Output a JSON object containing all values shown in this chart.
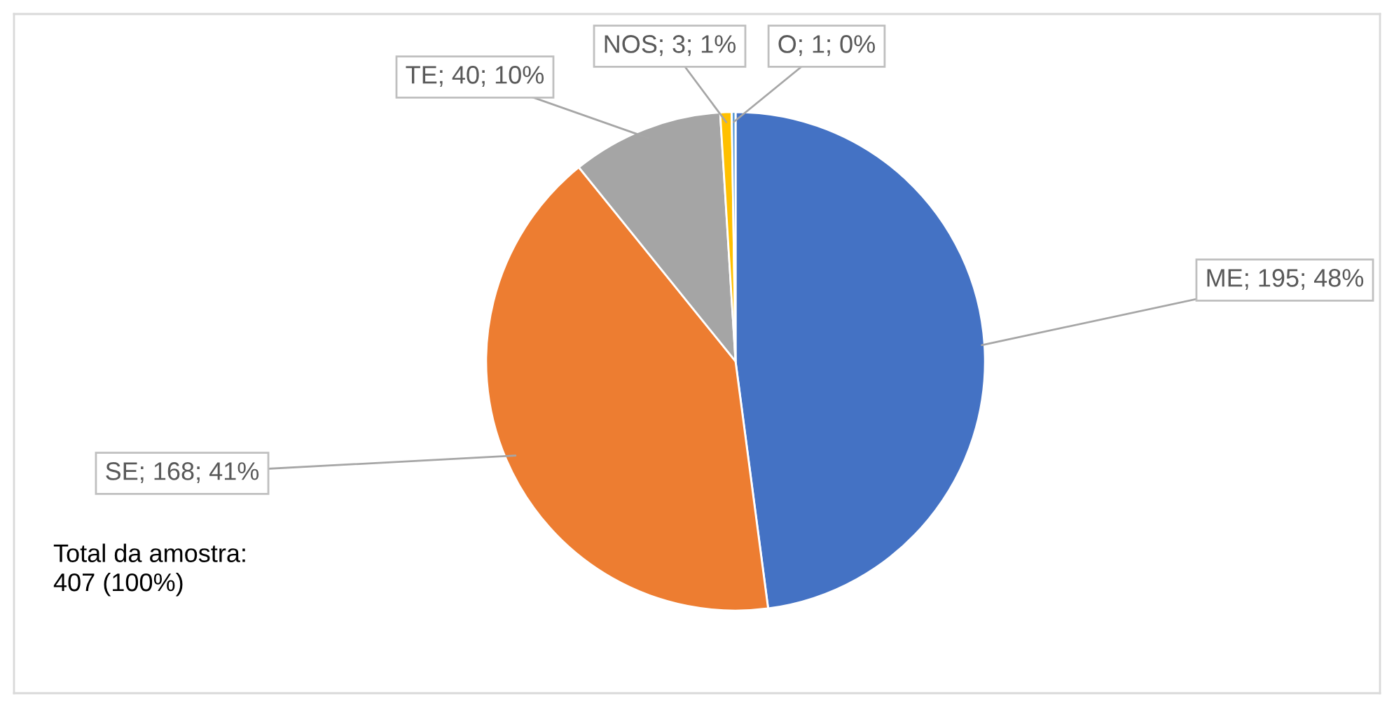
{
  "chart_data": {
    "type": "pie",
    "categories": [
      "ME",
      "SE",
      "TE",
      "NOS",
      "O"
    ],
    "values": [
      195,
      168,
      40,
      3,
      1
    ],
    "value_labels": [
      "195; 48%",
      "168; 41%",
      "40; 10%",
      "3; 1%",
      "1; 0%"
    ],
    "colors": [
      "#4472c4",
      "#ed7d31",
      "#a5a5a5",
      "#ffc000",
      "#5b9bd5"
    ],
    "annotations": [
      "Total da amostra:\n407 (100%)"
    ],
    "legend": false
  }
}
